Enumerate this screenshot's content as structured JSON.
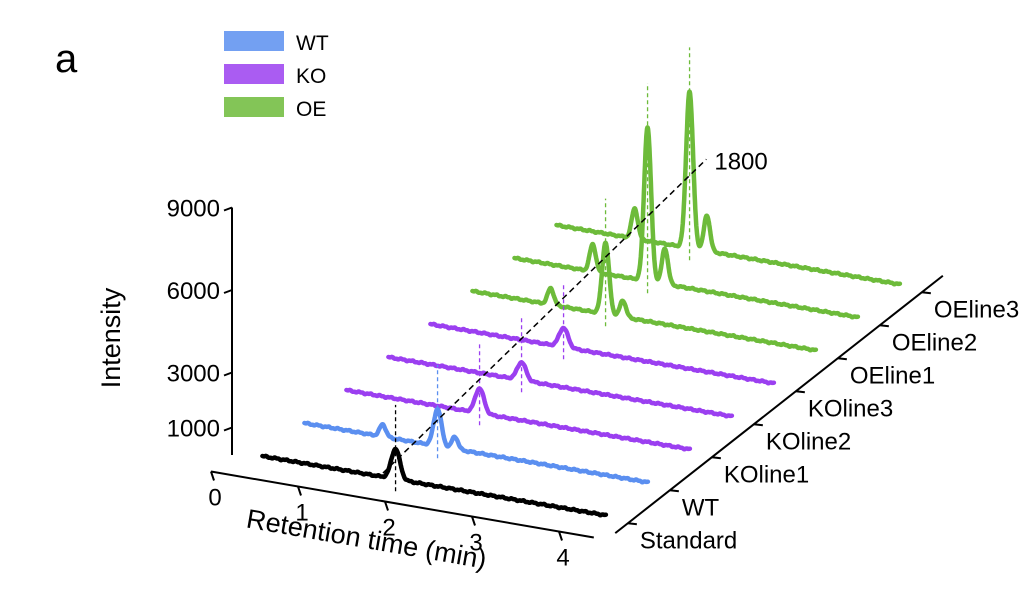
{
  "panel_label": "a",
  "chart_data": {
    "type": "line",
    "subtype": "3d-waterfall-chromatogram",
    "xlabel": "Retention time (min)",
    "ylabel": "Intensity",
    "x_ticks": [
      "0",
      "1",
      "2",
      "3",
      "4"
    ],
    "y_ticks": [
      "1000",
      "3000",
      "6000",
      "9000"
    ],
    "z_ticks": [
      "Standard",
      "WT",
      "KOline1",
      "KOline2",
      "KOline3",
      "OEline1",
      "OEline2",
      "OEline3"
    ],
    "xlim": [
      0,
      4.3
    ],
    "ylim": [
      0,
      9000
    ],
    "annotation": "1800",
    "legend": {
      "placement": "top-left",
      "entries": [
        {
          "label": "WT",
          "color": "#5b8ff0"
        },
        {
          "label": "KO",
          "color": "#9b3ff0"
        },
        {
          "label": "OE",
          "color": "#6dbb3a"
        }
      ]
    },
    "series": [
      {
        "name": "Standard",
        "group": "Standard",
        "color": "#000000",
        "baseline": 150,
        "x_start": 0.35,
        "x_end": 4.3,
        "peaks": [
          {
            "x": 1.88,
            "height": 1100,
            "width": 0.05
          }
        ]
      },
      {
        "name": "WT",
        "group": "WT",
        "color": "#5b8ff0",
        "baseline": 150,
        "x_start": 0.35,
        "x_end": 4.3,
        "peaks": [
          {
            "x": 1.25,
            "height": 450,
            "width": 0.035
          },
          {
            "x": 1.88,
            "height": 1350,
            "width": 0.045
          },
          {
            "x": 2.08,
            "height": 450,
            "width": 0.035
          }
        ]
      },
      {
        "name": "KOline1",
        "group": "KO",
        "color": "#9b3ff0",
        "baseline": 150,
        "x_start": 0.35,
        "x_end": 4.3,
        "peaks": [
          {
            "x": 1.88,
            "height": 900,
            "width": 0.05
          }
        ]
      },
      {
        "name": "KOline2",
        "group": "KO",
        "color": "#9b3ff0",
        "baseline": 150,
        "x_start": 0.35,
        "x_end": 4.3,
        "peaks": [
          {
            "x": 1.88,
            "height": 650,
            "width": 0.05
          }
        ]
      },
      {
        "name": "KOline3",
        "group": "KO",
        "color": "#9b3ff0",
        "baseline": 150,
        "x_start": 0.35,
        "x_end": 4.3,
        "peaks": [
          {
            "x": 1.88,
            "height": 700,
            "width": 0.05
          }
        ]
      },
      {
        "name": "OEline1",
        "group": "OE",
        "color": "#6dbb3a",
        "baseline": 150,
        "x_start": 0.35,
        "x_end": 4.3,
        "peaks": [
          {
            "x": 1.25,
            "height": 600,
            "width": 0.035
          },
          {
            "x": 1.88,
            "height": 2600,
            "width": 0.04
          },
          {
            "x": 2.08,
            "height": 600,
            "width": 0.035
          }
        ]
      },
      {
        "name": "OEline2",
        "group": "OE",
        "color": "#6dbb3a",
        "baseline": 150,
        "x_start": 0.35,
        "x_end": 4.3,
        "peaks": [
          {
            "x": 1.25,
            "height": 1000,
            "width": 0.035
          },
          {
            "x": 1.88,
            "height": 5600,
            "width": 0.04
          },
          {
            "x": 2.08,
            "height": 1300,
            "width": 0.035
          }
        ]
      },
      {
        "name": "OEline3",
        "group": "OE",
        "color": "#6dbb3a",
        "baseline": 150,
        "x_start": 0.35,
        "x_end": 4.3,
        "peaks": [
          {
            "x": 1.25,
            "height": 1100,
            "width": 0.035
          },
          {
            "x": 1.88,
            "height": 5700,
            "width": 0.04
          },
          {
            "x": 2.08,
            "height": 1300,
            "width": 0.035
          }
        ]
      }
    ]
  }
}
